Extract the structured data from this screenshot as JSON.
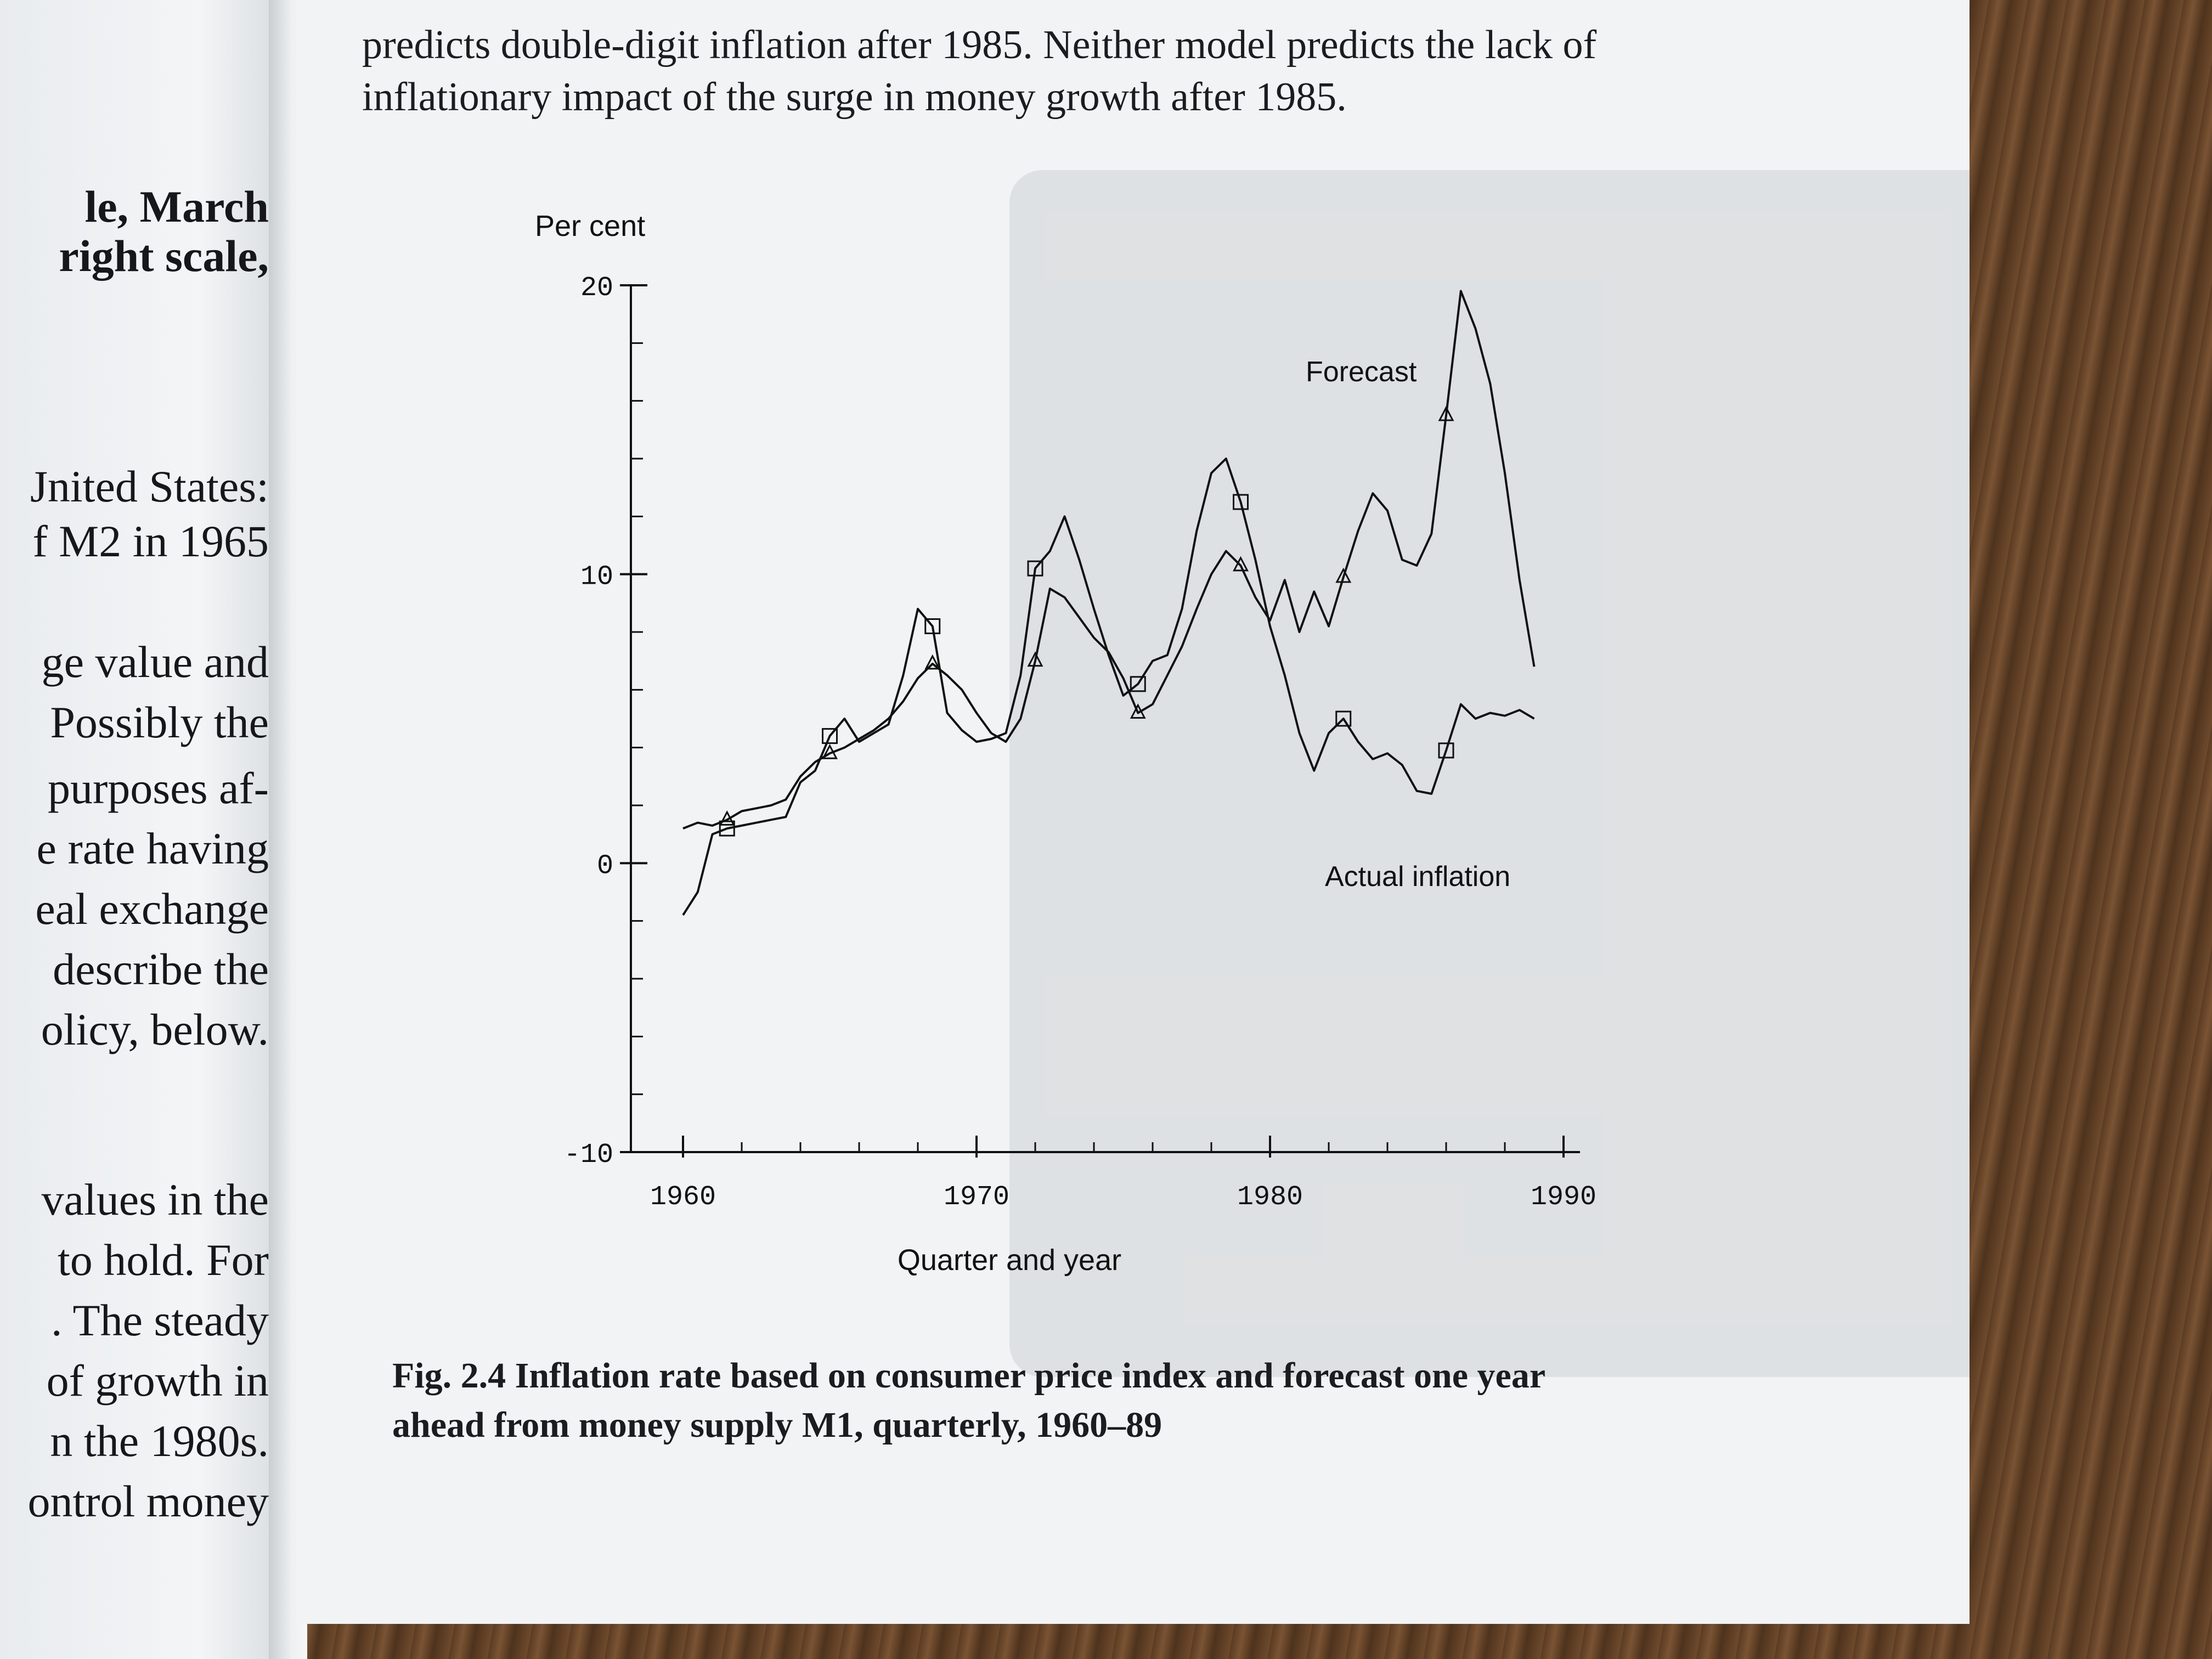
{
  "left_page": {
    "lines": [
      {
        "text": "le, March",
        "bold": true
      },
      {
        "text": "right scale,",
        "bold": true
      },
      {
        "text": "Jnited States:",
        "bold": false
      },
      {
        "text": "f M2 in 1965",
        "bold": false
      },
      {
        "text": "ge value and",
        "bold": false
      },
      {
        "text": "Possibly the",
        "bold": false
      },
      {
        "text": "purposes af-",
        "bold": false
      },
      {
        "text": "e rate having",
        "bold": false
      },
      {
        "text": "eal exchange",
        "bold": false
      },
      {
        "text": "describe the",
        "bold": false
      },
      {
        "text": "olicy, below.",
        "bold": false
      },
      {
        "text": "values in the",
        "bold": false
      },
      {
        "text": "to hold. For",
        "bold": false
      },
      {
        "text": ". The steady",
        "bold": false
      },
      {
        "text": "of growth in",
        "bold": false
      },
      {
        "text": "n the 1980s.",
        "bold": false
      },
      {
        "text": "ontrol money",
        "bold": false
      }
    ]
  },
  "top_text": {
    "line1": "predicts double-digit inflation after 1985. Neither model predicts the lack of",
    "line2": "inflationary impact of the surge in money growth after 1985."
  },
  "caption": {
    "line1": "Fig. 2.4   Inflation rate based on consumer price index and forecast one year",
    "line2": "ahead from money supply M1, quarterly, 1960–89"
  },
  "chart_data": {
    "type": "line",
    "ylabel": "Per cent",
    "xlabel": "Quarter and year",
    "ylim": [
      -10,
      20
    ],
    "xlim": [
      1960,
      1990
    ],
    "yticks": [
      20,
      10,
      0,
      -10
    ],
    "xticks": [
      1960,
      1970,
      1980,
      1990
    ],
    "series": [
      {
        "name": "Forecast",
        "marker": "triangle",
        "points": [
          [
            1960.0,
            1.2
          ],
          [
            1960.5,
            1.4
          ],
          [
            1961.0,
            1.3
          ],
          [
            1961.5,
            1.5
          ],
          [
            1962.0,
            1.8
          ],
          [
            1962.5,
            1.9
          ],
          [
            1963.0,
            2.0
          ],
          [
            1963.5,
            2.2
          ],
          [
            1964.0,
            3.0
          ],
          [
            1964.5,
            3.5
          ],
          [
            1965.0,
            3.8
          ],
          [
            1965.5,
            4.0
          ],
          [
            1966.0,
            4.3
          ],
          [
            1966.5,
            4.6
          ],
          [
            1967.0,
            5.0
          ],
          [
            1967.5,
            5.6
          ],
          [
            1968.0,
            6.4
          ],
          [
            1968.5,
            6.9
          ],
          [
            1969.0,
            6.5
          ],
          [
            1969.5,
            6.0
          ],
          [
            1970.0,
            5.2
          ],
          [
            1970.5,
            4.5
          ],
          [
            1971.0,
            4.2
          ],
          [
            1971.5,
            5.0
          ],
          [
            1972.0,
            7.0
          ],
          [
            1972.5,
            9.5
          ],
          [
            1973.0,
            9.2
          ],
          [
            1973.5,
            8.5
          ],
          [
            1974.0,
            7.8
          ],
          [
            1974.5,
            7.3
          ],
          [
            1975.0,
            6.4
          ],
          [
            1975.5,
            5.2
          ],
          [
            1976.0,
            5.5
          ],
          [
            1976.5,
            6.5
          ],
          [
            1977.0,
            7.5
          ],
          [
            1977.5,
            8.8
          ],
          [
            1978.0,
            10.0
          ],
          [
            1978.5,
            10.8
          ],
          [
            1979.0,
            10.3
          ],
          [
            1979.5,
            9.2
          ],
          [
            1980.0,
            8.4
          ],
          [
            1980.5,
            9.8
          ],
          [
            1981.0,
            8.0
          ],
          [
            1981.5,
            9.4
          ],
          [
            1982.0,
            8.2
          ],
          [
            1982.5,
            9.9
          ],
          [
            1983.0,
            11.5
          ],
          [
            1983.5,
            12.8
          ],
          [
            1984.0,
            12.2
          ],
          [
            1984.5,
            10.5
          ],
          [
            1985.0,
            10.3
          ],
          [
            1985.5,
            11.4
          ],
          [
            1986.0,
            15.5
          ],
          [
            1986.5,
            19.8
          ],
          [
            1987.0,
            18.5
          ],
          [
            1987.5,
            16.6
          ],
          [
            1988.0,
            13.5
          ],
          [
            1988.5,
            9.8
          ],
          [
            1989.0,
            6.8
          ]
        ]
      },
      {
        "name": "Actual inflation",
        "marker": "square",
        "points": [
          [
            1960.0,
            -1.8
          ],
          [
            1960.5,
            -1.0
          ],
          [
            1961.0,
            1.0
          ],
          [
            1961.5,
            1.2
          ],
          [
            1962.0,
            1.3
          ],
          [
            1962.5,
            1.4
          ],
          [
            1963.0,
            1.5
          ],
          [
            1963.5,
            1.6
          ],
          [
            1964.0,
            2.8
          ],
          [
            1964.5,
            3.2
          ],
          [
            1965.0,
            4.4
          ],
          [
            1965.5,
            5.0
          ],
          [
            1966.0,
            4.2
          ],
          [
            1966.5,
            4.5
          ],
          [
            1967.0,
            4.8
          ],
          [
            1967.5,
            6.5
          ],
          [
            1968.0,
            8.8
          ],
          [
            1968.5,
            8.2
          ],
          [
            1969.0,
            5.2
          ],
          [
            1969.5,
            4.6
          ],
          [
            1970.0,
            4.2
          ],
          [
            1970.5,
            4.3
          ],
          [
            1971.0,
            4.5
          ],
          [
            1971.5,
            6.5
          ],
          [
            1972.0,
            10.2
          ],
          [
            1972.5,
            10.8
          ],
          [
            1973.0,
            12.0
          ],
          [
            1973.5,
            10.5
          ],
          [
            1974.0,
            8.8
          ],
          [
            1974.5,
            7.2
          ],
          [
            1975.0,
            5.8
          ],
          [
            1975.5,
            6.2
          ],
          [
            1976.0,
            7.0
          ],
          [
            1976.5,
            7.2
          ],
          [
            1977.0,
            8.8
          ],
          [
            1977.5,
            11.5
          ],
          [
            1978.0,
            13.5
          ],
          [
            1978.5,
            14.0
          ],
          [
            1979.0,
            12.5
          ],
          [
            1979.5,
            10.5
          ],
          [
            1980.0,
            8.2
          ],
          [
            1980.5,
            6.5
          ],
          [
            1981.0,
            4.5
          ],
          [
            1981.5,
            3.2
          ],
          [
            1982.0,
            4.5
          ],
          [
            1982.5,
            5.0
          ],
          [
            1983.0,
            4.2
          ],
          [
            1983.5,
            3.6
          ],
          [
            1984.0,
            3.8
          ],
          [
            1984.5,
            3.4
          ],
          [
            1985.0,
            2.5
          ],
          [
            1985.5,
            2.4
          ],
          [
            1986.0,
            3.9
          ],
          [
            1986.5,
            5.5
          ],
          [
            1987.0,
            5.0
          ],
          [
            1987.5,
            5.2
          ],
          [
            1988.0,
            5.1
          ],
          [
            1988.5,
            5.3
          ],
          [
            1989.0,
            5.0
          ]
        ]
      }
    ],
    "annotations": [
      {
        "text": "Forecast",
        "near": "upper-right"
      },
      {
        "text": "Actual inflation",
        "near": "lower-right"
      }
    ]
  }
}
